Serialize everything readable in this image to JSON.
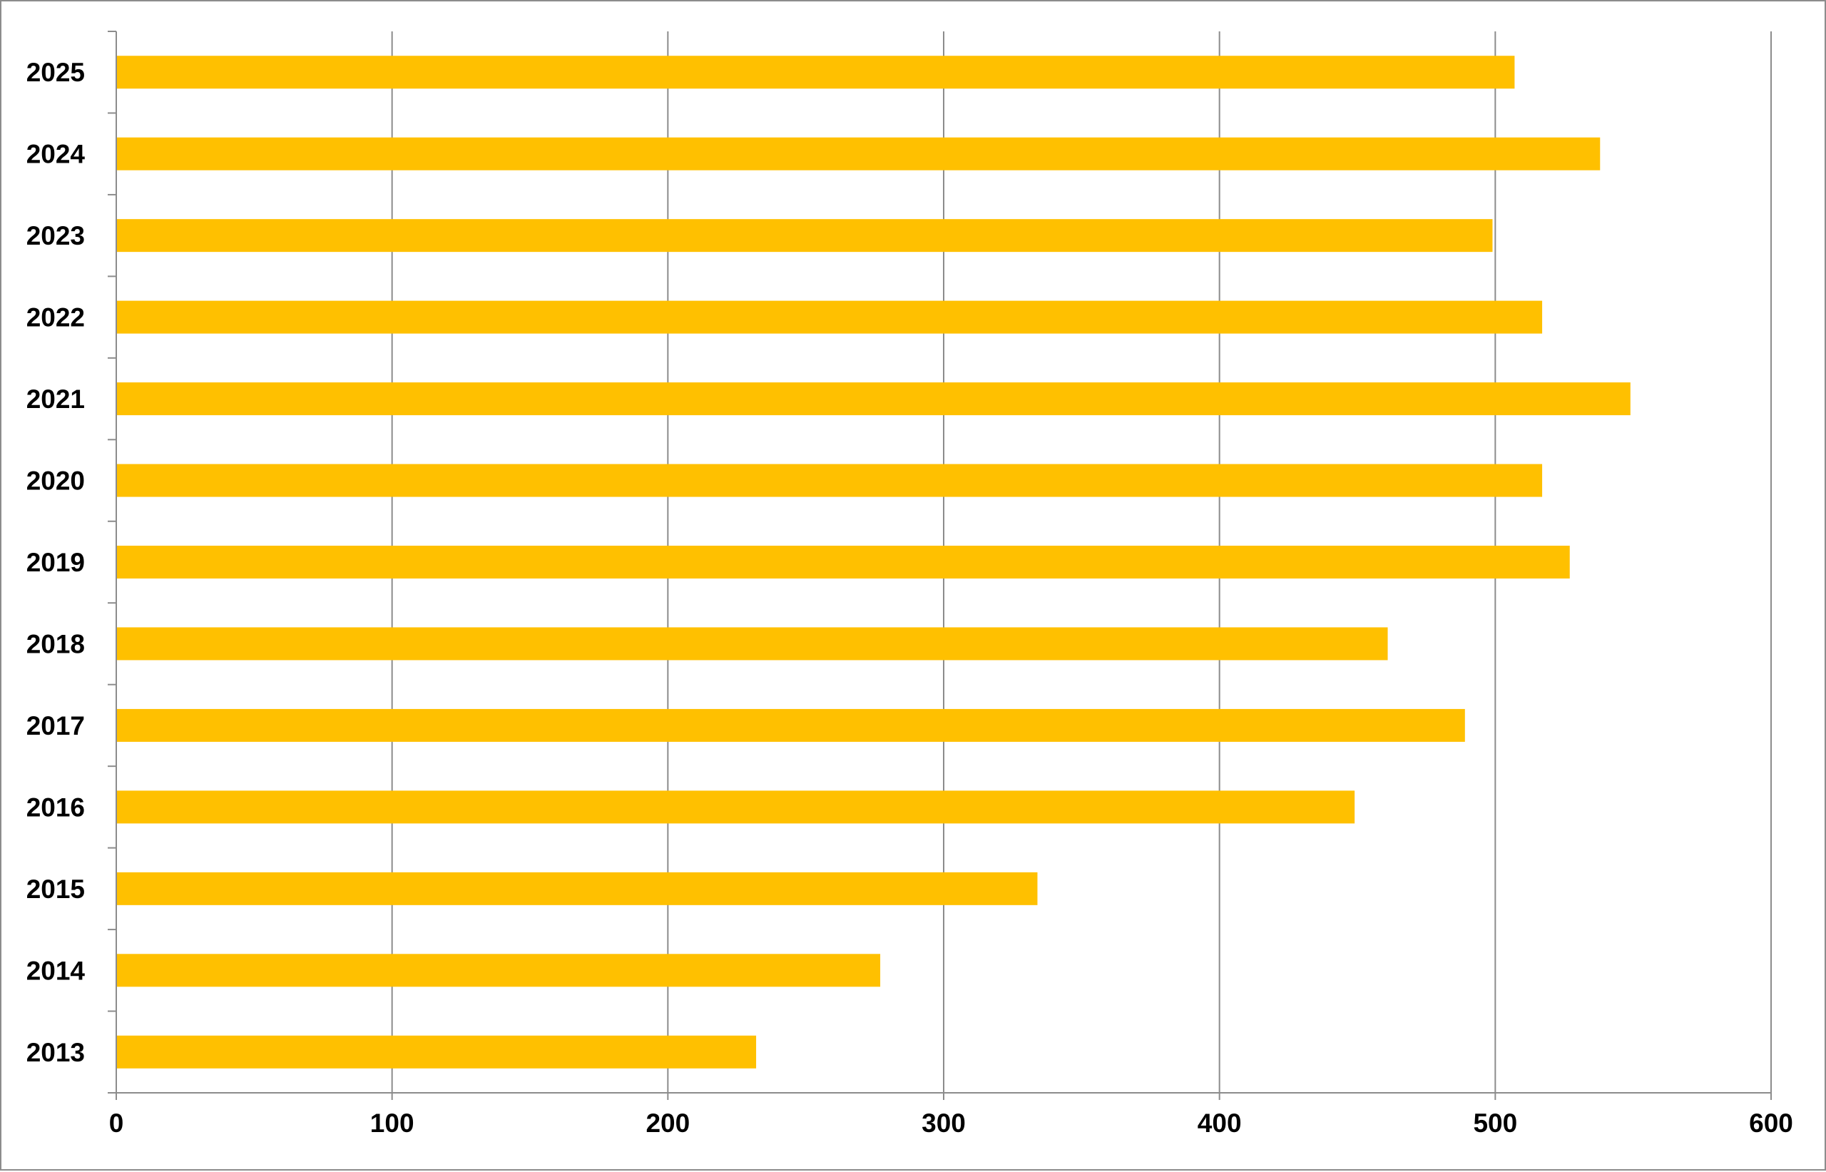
{
  "chart_data": {
    "type": "bar",
    "orientation": "horizontal",
    "title": "",
    "xlabel": "",
    "ylabel": "",
    "categories": [
      "2013",
      "2014",
      "2015",
      "2016",
      "2017",
      "2018",
      "2019",
      "2020",
      "2021",
      "2022",
      "2023",
      "2024",
      "2025"
    ],
    "series": [
      {
        "values": [
          232,
          277,
          334,
          449,
          489,
          461,
          527,
          517,
          549,
          517,
          499,
          538,
          507
        ],
        "color": "#FFC000"
      }
    ],
    "xlim": [
      0,
      600
    ],
    "x_ticks": [
      "0",
      "100",
      "200",
      "300",
      "400",
      "500",
      "600"
    ],
    "grid": "vertical",
    "legend": "none",
    "colors": {
      "bar": "#FFC000",
      "grid": "#8c8c8c",
      "axis": "#8c8c8c",
      "border": "#8c8c8c",
      "text": "#000000"
    }
  }
}
